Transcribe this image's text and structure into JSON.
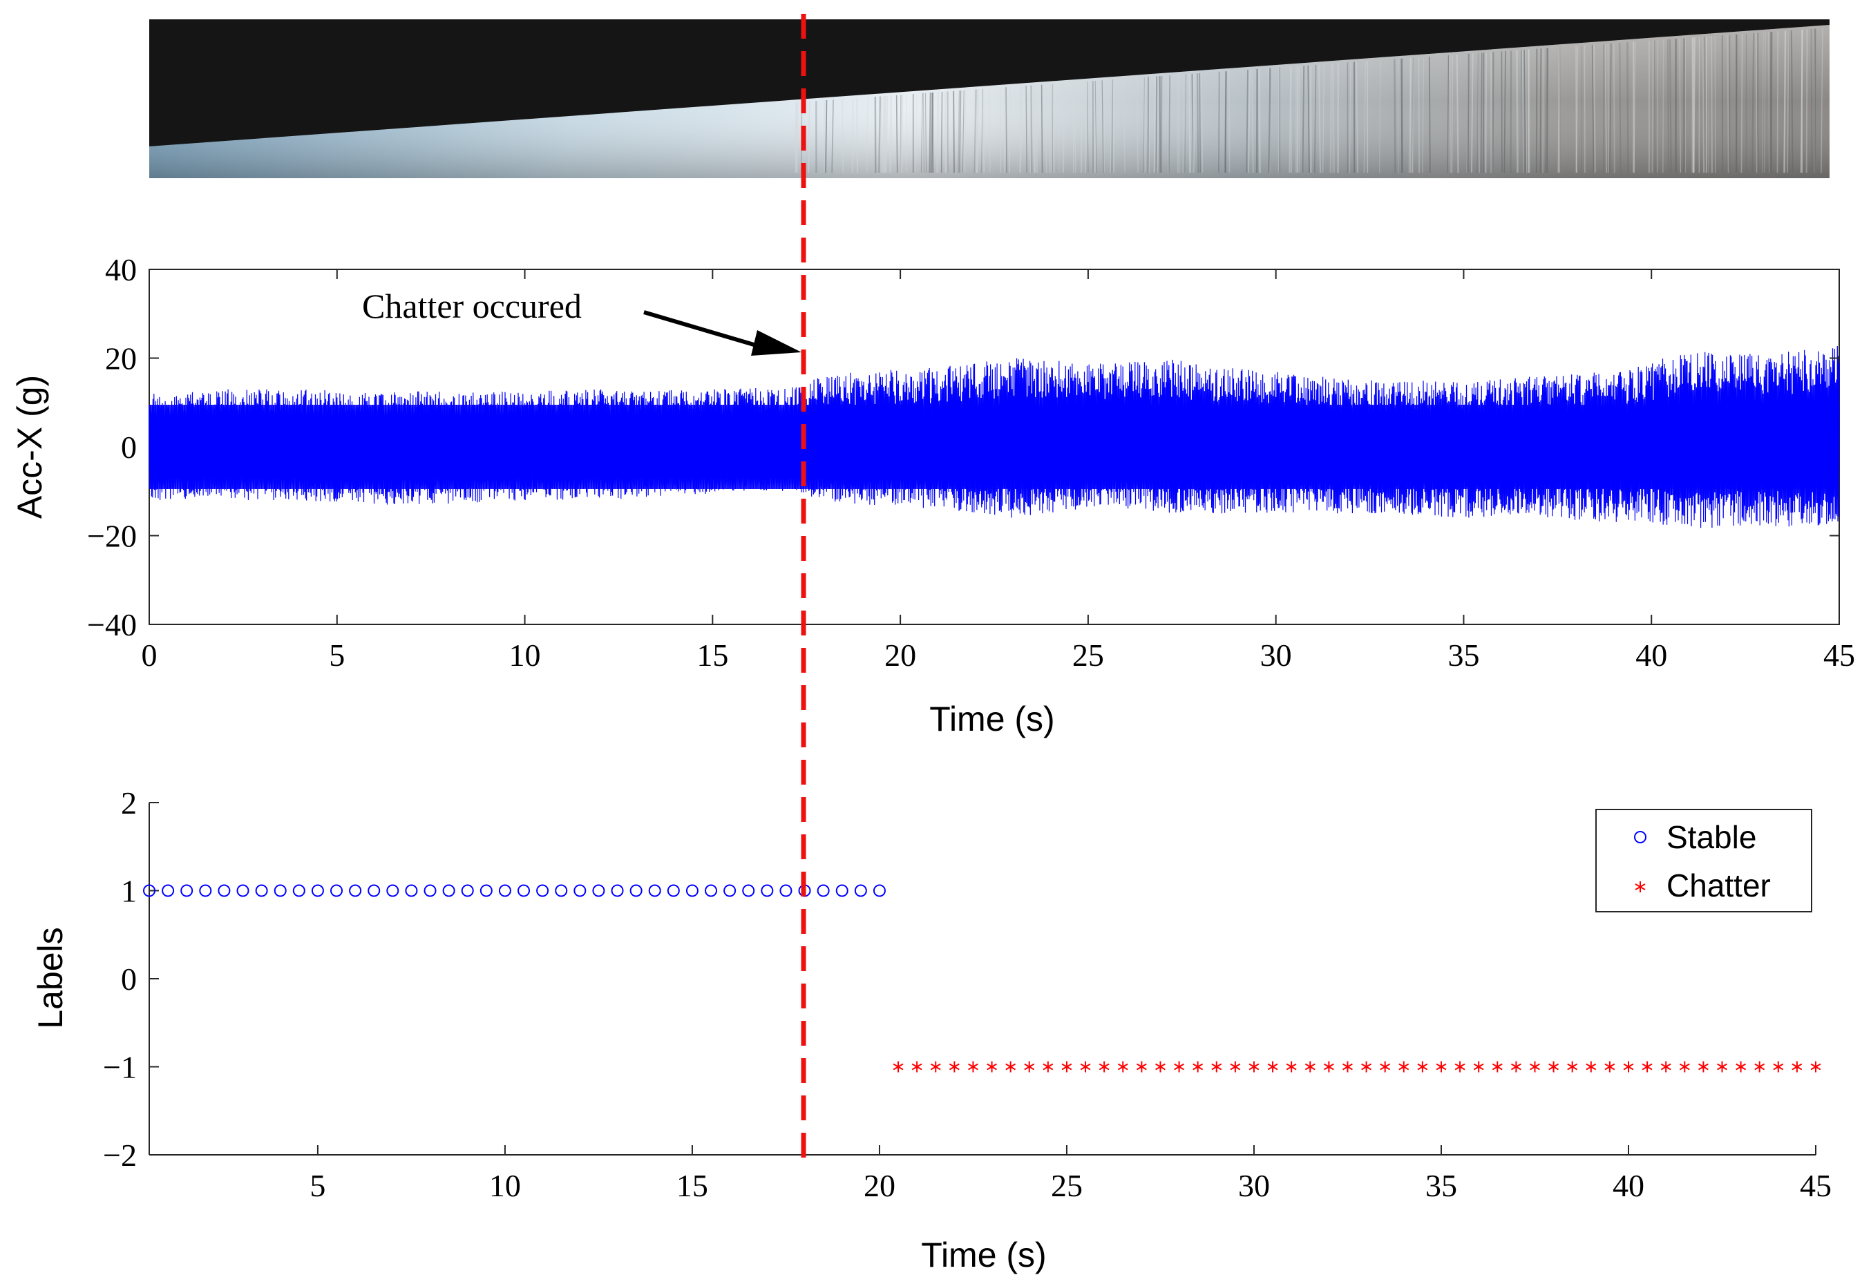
{
  "workpiece_photo": {
    "caption": "",
    "description_icon": "tapered-workpiece-photo"
  },
  "colors": {
    "signal": "#0000ff",
    "stable": "#0000ff",
    "chatter": "#ff0000",
    "onset_line": "#ee1111",
    "axes": "#000000"
  },
  "chart_data": [
    {
      "type": "line",
      "title": "",
      "xlabel": "Time (s)",
      "ylabel": "Acc-X (g)",
      "xlim": [
        0,
        45
      ],
      "ylim": [
        -40,
        40
      ],
      "xticks": [
        "0",
        "5",
        "10",
        "15",
        "20",
        "25",
        "30",
        "35",
        "40",
        "45"
      ],
      "yticks": [
        "40",
        "20",
        "0",
        "−20",
        "−40"
      ],
      "grid": false,
      "series": [
        {
          "color": "#0000ff",
          "envelope": {
            "t": [
              0,
              2,
              4,
              6,
              8,
              10,
              12,
              14,
              16,
              17.3,
              17.6,
              19,
              21,
              23,
              24,
              26,
              27,
              29,
              31,
              33,
              35,
              37,
              39,
              40,
              41,
              42,
              43,
              44,
              45
            ],
            "upper": [
              12,
              13,
              13,
              12.5,
              12.5,
              12.5,
              13,
              13,
              13.5,
              14,
              16,
              17,
              18,
              20,
              20,
              19,
              20,
              18,
              16,
              15,
              15,
              16,
              17,
              19,
              22,
              21,
              21,
              22,
              23
            ],
            "lower": [
              -12,
              -12,
              -12,
              -13,
              -13,
              -12,
              -12,
              -11,
              -10,
              -10,
              -12,
              -13,
              -14,
              -16,
              -15,
              -14,
              -15,
              -15,
              -15,
              -15,
              -16,
              -16,
              -17,
              -17,
              -19,
              -18,
              -18,
              -18,
              -19
            ]
          }
        }
      ],
      "annotations": [
        {
          "text": "Chatter occured",
          "x": 17.4,
          "y": 22
        }
      ]
    },
    {
      "type": "scatter",
      "title": "",
      "xlabel": "Time (s)",
      "ylabel": "Labels",
      "xlim": [
        0.5,
        45
      ],
      "ylim": [
        -2,
        2
      ],
      "xticks": [
        "5",
        "10",
        "15",
        "20",
        "25",
        "30",
        "35",
        "40",
        "45"
      ],
      "yticks": [
        "2",
        "1",
        "0",
        "−1",
        "−2"
      ],
      "grid": false,
      "legend": {
        "position": "top-right"
      },
      "series": [
        {
          "name": "Stable",
          "marker": "circle",
          "color": "#0000ff",
          "y": 1,
          "x_start": 0.5,
          "x_step": 0.5,
          "count": 40
        },
        {
          "name": "Chatter",
          "marker": "asterisk",
          "color": "#ff0000",
          "y": -1,
          "x_start": 20.5,
          "x_step": 0.5,
          "count": 50
        }
      ]
    }
  ],
  "chatter_onset": {
    "time_s": 17.4
  }
}
